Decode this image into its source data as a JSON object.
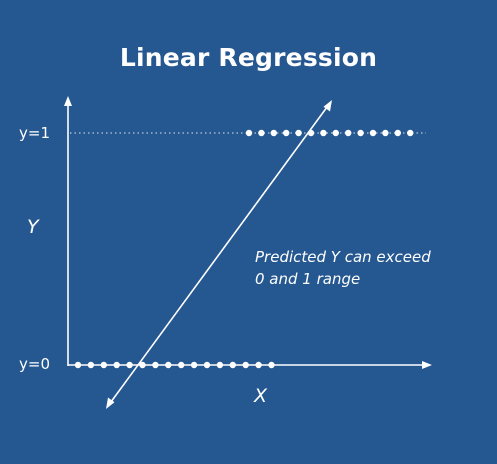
{
  "slide": {
    "title": "Linear Regression"
  },
  "colors": {
    "background": "#255790",
    "foreground": "#ffffff"
  },
  "diagram": {
    "y_axis_label": "Y",
    "x_axis_label": "X",
    "tick_y1": "y=1",
    "tick_y0": "y=0",
    "note_line1": "Predicted Y can exceed",
    "note_line2": "0 and 1 range",
    "points_y0_count": 16,
    "points_y1_count": 14
  }
}
